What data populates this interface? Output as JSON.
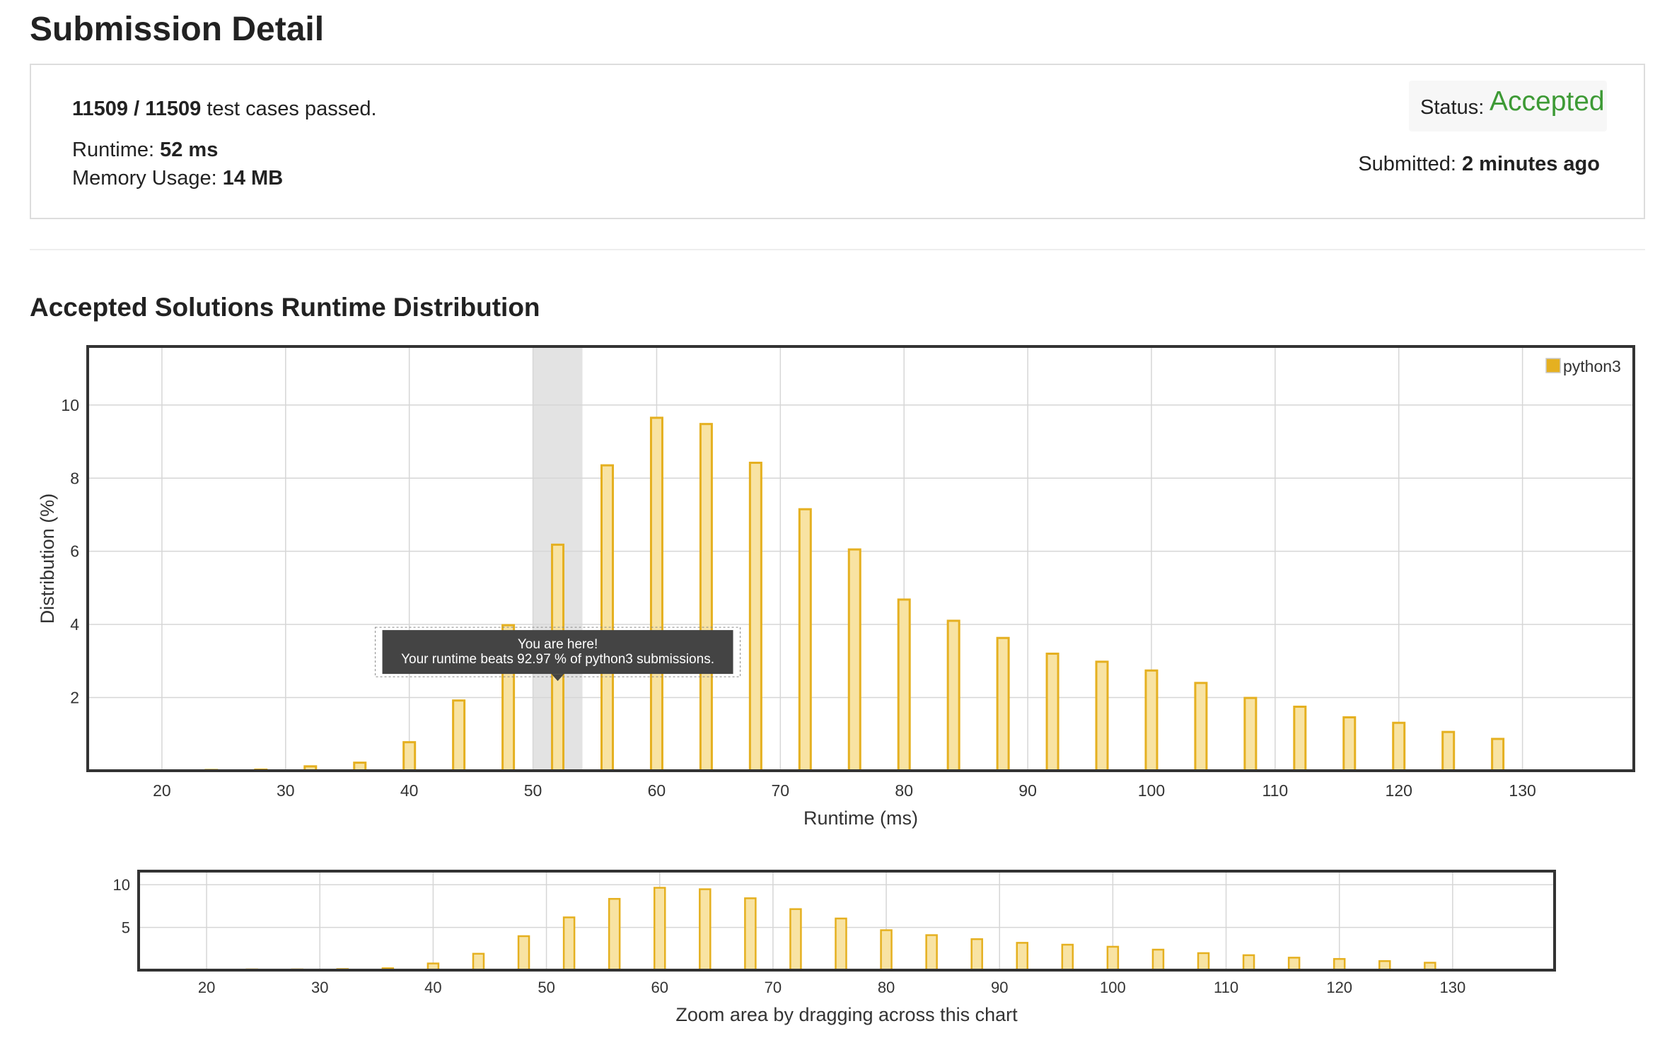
{
  "page": {
    "title": "Submission Detail"
  },
  "summary": {
    "passed": "11509 / 11509",
    "passed_suffix": " test cases passed.",
    "runtime_label": "Runtime: ",
    "runtime_value": "52 ms",
    "memory_label": "Memory Usage: ",
    "memory_value": "14 MB",
    "status_label": "Status:",
    "status_value": "Accepted",
    "submitted_label": "Submitted: ",
    "submitted_value": "2 minutes ago"
  },
  "colors": {
    "accepted": "#3d9a35",
    "bar_fill": "#f8e3a3",
    "bar_stroke": "#e5b020",
    "highlight": "#e3e3e3",
    "tooltip_bg": "#444444"
  },
  "section": {
    "title": "Accepted Solutions Runtime Distribution"
  },
  "tooltip": {
    "line1": "You are here!",
    "line2": "Your runtime beats 92.97 % of python3 submissions."
  },
  "legend": {
    "label": "python3"
  },
  "navigator": {
    "caption": "Zoom area by dragging across this chart"
  },
  "chart_data": [
    {
      "type": "bar",
      "title": "Accepted Solutions Runtime Distribution",
      "xlabel": "Runtime (ms)",
      "ylabel": "Distribution (%)",
      "xlim": [
        14,
        139
      ],
      "ylim": [
        0,
        11.6
      ],
      "x_ticks": [
        20,
        30,
        40,
        50,
        60,
        70,
        80,
        90,
        100,
        110,
        120,
        130
      ],
      "y_ticks": [
        2,
        4,
        6,
        8,
        10
      ],
      "grid": true,
      "legend_position": "top-right",
      "highlight_range": [
        50,
        54
      ],
      "series": [
        {
          "name": "python3",
          "x": [
            24,
            28,
            32,
            36,
            40,
            44,
            48,
            52,
            56,
            60,
            64,
            68,
            72,
            76,
            80,
            84,
            88,
            92,
            96,
            100,
            104,
            108,
            112,
            116,
            120,
            124,
            128
          ],
          "values": [
            0.02,
            0.03,
            0.12,
            0.22,
            0.78,
            1.92,
            3.98,
            6.18,
            8.35,
            9.65,
            9.48,
            8.42,
            7.15,
            6.05,
            4.68,
            4.1,
            3.63,
            3.2,
            2.98,
            2.74,
            2.4,
            1.99,
            1.75,
            1.46,
            1.31,
            1.06,
            0.87
          ]
        }
      ]
    },
    {
      "type": "bar",
      "xlabel": "Zoom area by dragging across this chart",
      "xlim": [
        14,
        139
      ],
      "ylim": [
        0,
        11.6
      ],
      "x_ticks": [
        20,
        30,
        40,
        50,
        60,
        70,
        80,
        90,
        100,
        110,
        120,
        130
      ],
      "y_ticks": [
        5,
        10
      ],
      "grid": true,
      "series": [
        {
          "name": "python3",
          "x": [
            24,
            28,
            32,
            36,
            40,
            44,
            48,
            52,
            56,
            60,
            64,
            68,
            72,
            76,
            80,
            84,
            88,
            92,
            96,
            100,
            104,
            108,
            112,
            116,
            120,
            124,
            128
          ],
          "values": [
            0.02,
            0.03,
            0.12,
            0.22,
            0.78,
            1.92,
            3.98,
            6.18,
            8.35,
            9.65,
            9.48,
            8.42,
            7.15,
            6.05,
            4.68,
            4.1,
            3.63,
            3.2,
            2.98,
            2.74,
            2.4,
            1.99,
            1.75,
            1.46,
            1.31,
            1.06,
            0.87
          ]
        }
      ]
    }
  ]
}
